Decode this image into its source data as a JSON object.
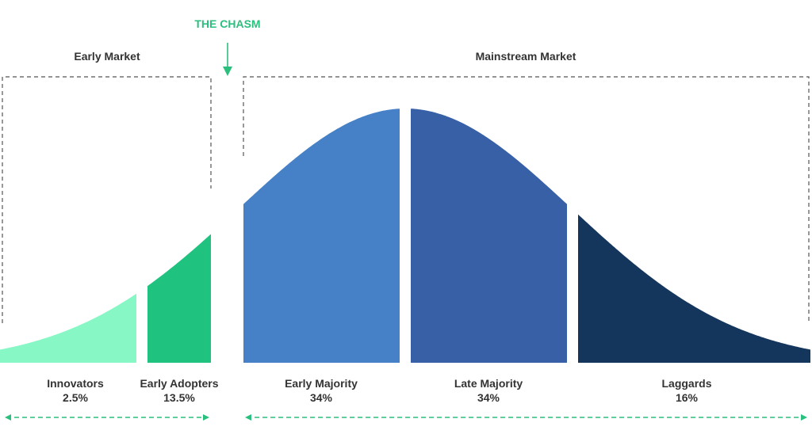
{
  "chasm": {
    "label": "THE CHASM"
  },
  "markets": {
    "early": {
      "label": "Early Market"
    },
    "mainstream": {
      "label": "Mainstream Market"
    }
  },
  "segments": [
    {
      "id": "innovators",
      "name": "Innovators",
      "percent": "2.5%",
      "value": 2.5,
      "color": "#86f7c5"
    },
    {
      "id": "early-adopters",
      "name": "Early Adopters",
      "percent": "13.5%",
      "value": 13.5,
      "color": "#1fc27e"
    },
    {
      "id": "early-majority",
      "name": "Early Majority",
      "percent": "34%",
      "value": 34,
      "color": "#4680c6"
    },
    {
      "id": "late-majority",
      "name": "Late Majority",
      "percent": "34%",
      "value": 34,
      "color": "#3760a6"
    },
    {
      "id": "laggards",
      "name": "Laggards",
      "percent": "16%",
      "value": 16,
      "color": "#14365c"
    }
  ],
  "colors": {
    "chasm_accent": "#2bbf7e",
    "bracket": "#555555",
    "text": "#333333"
  },
  "icons": {
    "chasm_arrow": "arrow-down-icon",
    "span_arrow": "double-arrow-icon"
  }
}
